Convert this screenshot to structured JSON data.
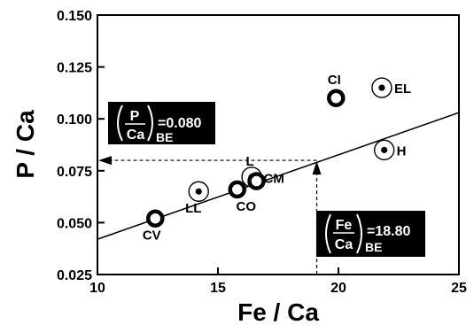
{
  "chart_data": {
    "type": "scatter",
    "xlabel": "Fe / Ca",
    "ylabel": "P / Ca",
    "xlim": [
      10,
      25
    ],
    "ylim": [
      0.025,
      0.15
    ],
    "xticks": [
      "10",
      "15",
      "20",
      "25"
    ],
    "yticks": [
      "0.025",
      "0.050",
      "0.075",
      "0.100",
      "0.125",
      "0.150"
    ],
    "grid": false,
    "points": [
      {
        "label": "CV",
        "x": 12.4,
        "y": 0.052,
        "style": "ring-thick"
      },
      {
        "label": "LL",
        "x": 14.2,
        "y": 0.065,
        "style": "circle-dot"
      },
      {
        "label": "CO",
        "x": 15.8,
        "y": 0.066,
        "style": "ring-thick"
      },
      {
        "label": "L",
        "x": 16.4,
        "y": 0.072,
        "style": "circle-dot"
      },
      {
        "label": "CM",
        "x": 16.6,
        "y": 0.07,
        "style": "ring-thick"
      },
      {
        "label": "CI",
        "x": 19.9,
        "y": 0.11,
        "style": "ring-thick"
      },
      {
        "label": "EL",
        "x": 21.8,
        "y": 0.115,
        "style": "circle-dot"
      },
      {
        "label": "H",
        "x": 21.9,
        "y": 0.085,
        "style": "circle-dot"
      }
    ],
    "fit_line": {
      "x": [
        10,
        25
      ],
      "y": [
        0.042,
        0.103
      ]
    },
    "annotations": {
      "p_ca": {
        "numerator": "P",
        "denominator": "Ca",
        "value": "=0.080",
        "subscript": "BE",
        "y": 0.08
      },
      "fe_ca": {
        "numerator": "Fe",
        "denominator": "Ca",
        "value": "=18.80",
        "subscript": "BE",
        "x": 19.1
      }
    }
  }
}
